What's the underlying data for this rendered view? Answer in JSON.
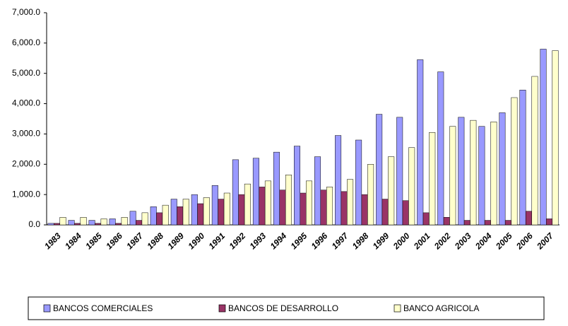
{
  "chart_data": {
    "type": "bar",
    "categories": [
      "1983",
      "1984",
      "1985",
      "1986",
      "1987",
      "1988",
      "1989",
      "1990",
      "1991",
      "1992",
      "1993",
      "1994",
      "1995",
      "1996",
      "1997",
      "1998",
      "1999",
      "2000",
      "2001",
      "2002",
      "2003",
      "2004",
      "2005",
      "2006",
      "2007"
    ],
    "series": [
      {
        "name": "BANCOS COMERCIALES",
        "color": "#9999ff",
        "values": [
          50,
          150,
          150,
          200,
          450,
          600,
          850,
          1000,
          1300,
          2150,
          2200,
          2400,
          2600,
          2250,
          2950,
          2800,
          3650,
          3550,
          5450,
          5050,
          3550,
          3250,
          3700,
          4450,
          5800
        ]
      },
      {
        "name": "BANCOS DE DESARROLLO",
        "color": "#993366",
        "values": [
          50,
          50,
          50,
          50,
          150,
          400,
          600,
          700,
          850,
          1000,
          1250,
          1150,
          1050,
          1150,
          1100,
          1000,
          850,
          800,
          400,
          250,
          150,
          150,
          150,
          450,
          200
        ]
      },
      {
        "name": "BANCO AGRICOLA",
        "color": "#ffffcc",
        "values": [
          250,
          250,
          200,
          250,
          400,
          650,
          850,
          900,
          1050,
          1350,
          1450,
          1650,
          1450,
          1250,
          1500,
          2000,
          2250,
          2550,
          3050,
          3250,
          3450,
          3400,
          4200,
          4900,
          5750
        ]
      }
    ],
    "ylim": [
      0,
      7000
    ],
    "yticks": [
      {
        "value": 0,
        "label": "0.0"
      },
      {
        "value": 1000,
        "label": "1,000.0"
      },
      {
        "value": 2000,
        "label": "2,000.0"
      },
      {
        "value": 3000,
        "label": "3,000.0"
      },
      {
        "value": 4000,
        "label": "4,000.0"
      },
      {
        "value": 5000,
        "label": "5,000.0"
      },
      {
        "value": 6000,
        "label": "6,000.0"
      },
      {
        "value": 7000,
        "label": "7,000.0"
      }
    ],
    "grid": false,
    "legend": "bottom"
  }
}
